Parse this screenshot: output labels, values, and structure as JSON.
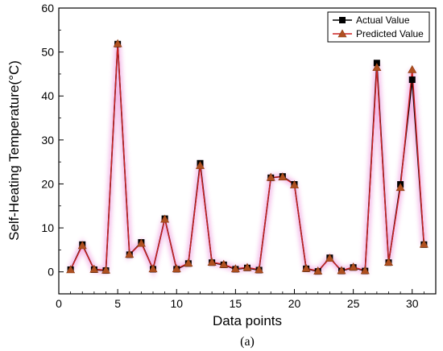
{
  "chart_data": {
    "type": "line",
    "title": "",
    "caption": "(a)",
    "xlabel": "Data points",
    "ylabel": "Self-Heating Temperature(°C)",
    "xlim": [
      0,
      32
    ],
    "ylim": [
      -5,
      60
    ],
    "xticks": [
      0,
      5,
      10,
      15,
      20,
      25,
      30
    ],
    "yticks": [
      0,
      10,
      20,
      30,
      40,
      50,
      60
    ],
    "grid": false,
    "legend_position": "top-right",
    "x": [
      1,
      2,
      3,
      4,
      5,
      6,
      7,
      8,
      9,
      10,
      11,
      12,
      13,
      14,
      15,
      16,
      17,
      18,
      19,
      20,
      21,
      22,
      23,
      24,
      25,
      26,
      27,
      28,
      29,
      30,
      31
    ],
    "series": [
      {
        "name": "Actual Value",
        "color": "#000000",
        "marker": "square",
        "values": [
          0.5,
          6.2,
          0.5,
          0.3,
          51.8,
          3.9,
          6.7,
          0.6,
          12.1,
          0.6,
          1.9,
          24.7,
          2.1,
          1.6,
          0.6,
          0.9,
          0.4,
          21.4,
          21.7,
          19.9,
          0.7,
          0.1,
          3.2,
          0.2,
          1.0,
          0.2,
          47.5,
          2.1,
          19.9,
          43.7,
          6.2
        ]
      },
      {
        "name": "Predicted Value",
        "color": "#cc2020",
        "marker": "triangle",
        "values": [
          0.5,
          6.0,
          0.6,
          0.4,
          51.9,
          4.0,
          6.5,
          0.7,
          12.0,
          0.7,
          2.0,
          24.2,
          2.2,
          1.7,
          0.7,
          1.0,
          0.5,
          21.5,
          21.6,
          19.8,
          0.8,
          0.2,
          3.1,
          0.3,
          1.1,
          0.3,
          46.5,
          2.2,
          19.2,
          46.0,
          6.3
        ]
      }
    ]
  }
}
